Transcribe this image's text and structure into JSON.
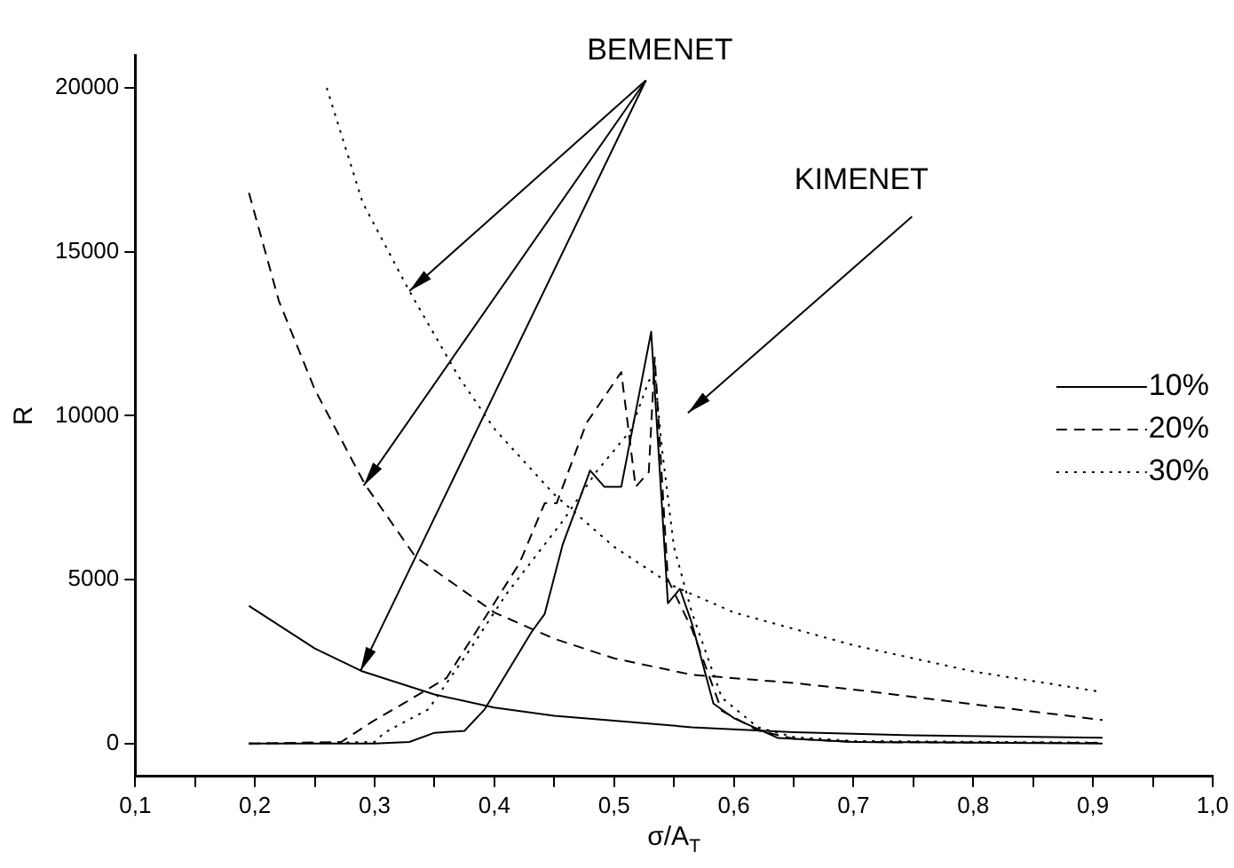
{
  "chart_data": {
    "type": "line",
    "xlabel": "σ/A$_{T}$",
    "ylabel": "R",
    "annotations": [
      {
        "text": "BEMENET",
        "x": 0.329,
        "y": 13800
      },
      "KIMENET"
    ],
    "xlim": [
      0.1,
      1.0
    ],
    "ylim": [
      -1000,
      21000
    ],
    "xticks": [
      {
        "value": 0.1,
        "label": "0,1"
      },
      {
        "value": 0.15,
        "label": null
      },
      {
        "value": 0.2,
        "label": "0,2"
      },
      {
        "value": 0.25,
        "label": null
      },
      {
        "value": 0.3,
        "label": "0,3"
      },
      {
        "value": 0.35,
        "label": null
      },
      {
        "value": 0.4,
        "label": "0,4"
      },
      {
        "value": 0.45,
        "label": null
      },
      {
        "value": 0.5,
        "label": "0,5"
      },
      {
        "value": 0.55,
        "label": null
      },
      {
        "value": 0.6,
        "label": "0,6"
      },
      {
        "value": 0.65,
        "label": null
      },
      {
        "value": 0.7,
        "label": "0,7"
      },
      {
        "value": 0.75,
        "label": null
      },
      {
        "value": 0.8,
        "label": "0,8"
      },
      {
        "value": 0.85,
        "label": null
      },
      {
        "value": 0.9,
        "label": "0,9"
      },
      {
        "value": 0.95,
        "label": null
      },
      {
        "value": 1.0,
        "label": "1,0"
      }
    ],
    "yticks": [
      0,
      5000,
      10000,
      15000,
      20000
    ],
    "grid": false,
    "legend": "right",
    "marker": "none",
    "series": [
      {
        "name": "10%",
        "color": "#000000",
        "line_style": "solid",
        "x": [
          0.195,
          0.25,
          0.29,
          0.35,
          0.4,
          0.45,
          0.5,
          0.565,
          0.65,
          0.75,
          0.908
        ],
        "values": [
          4200,
          2900,
          2200,
          1500,
          1100,
          850,
          700,
          500,
          350,
          250,
          180
        ]
      },
      {
        "name": "20%",
        "color": "#000000",
        "line_style": "dashed",
        "x": [
          0.195,
          0.22,
          0.25,
          0.292,
          0.334,
          0.4,
          0.45,
          0.5,
          0.565,
          0.65,
          0.7,
          0.8,
          0.908
        ],
        "values": [
          16800,
          13500,
          10800,
          7900,
          5700,
          4000,
          3200,
          2600,
          2100,
          1850,
          1650,
          1200,
          720
        ]
      },
      {
        "name": "30%",
        "color": "#000000",
        "line_style": "dotted",
        "x": [
          0.26,
          0.29,
          0.329,
          0.37,
          0.4,
          0.45,
          0.5,
          0.55,
          0.6,
          0.7,
          0.8,
          0.903
        ],
        "values": [
          20000,
          16500,
          13800,
          11200,
          9600,
          7600,
          6000,
          4800,
          4000,
          3000,
          2200,
          1600
        ]
      },
      {
        "color": "#000000",
        "line_style": "solid",
        "x": [
          0.195,
          0.3,
          0.329,
          0.35,
          0.375,
          0.392,
          0.431,
          0.442,
          0.457,
          0.48,
          0.492,
          0.506,
          0.531,
          0.545,
          0.555,
          0.565,
          0.583,
          0.6,
          0.637,
          0.7,
          0.908
        ],
        "values": [
          0,
          0,
          50,
          330,
          390,
          1050,
          3400,
          3950,
          6060,
          8330,
          7830,
          7830,
          12560,
          4280,
          4720,
          3670,
          1220,
          780,
          170,
          50,
          0
        ]
      },
      {
        "color": "#000000",
        "line_style": "dashed",
        "x": [
          0.195,
          0.272,
          0.298,
          0.329,
          0.36,
          0.395,
          0.421,
          0.442,
          0.452,
          0.477,
          0.506,
          0.518,
          0.529,
          0.534,
          0.545,
          0.565,
          0.59,
          0.62,
          0.65,
          0.7,
          0.908
        ],
        "values": [
          0,
          50,
          670,
          1330,
          2000,
          4000,
          5500,
          7330,
          7330,
          9780,
          11330,
          7830,
          8280,
          11780,
          5000,
          3500,
          1000,
          400,
          150,
          50,
          20
        ]
      },
      {
        "color": "#000000",
        "line_style": "dotted",
        "x": [
          0.195,
          0.3,
          0.308,
          0.345,
          0.38,
          0.41,
          0.457,
          0.485,
          0.514,
          0.529,
          0.534,
          0.54,
          0.55,
          0.565,
          0.59,
          0.62,
          0.65,
          0.7,
          0.908
        ],
        "values": [
          0,
          50,
          330,
          1050,
          2890,
          4560,
          6780,
          8280,
          9560,
          11060,
          11300,
          9000,
          6000,
          4000,
          1400,
          500,
          200,
          80,
          30
        ]
      }
    ]
  }
}
